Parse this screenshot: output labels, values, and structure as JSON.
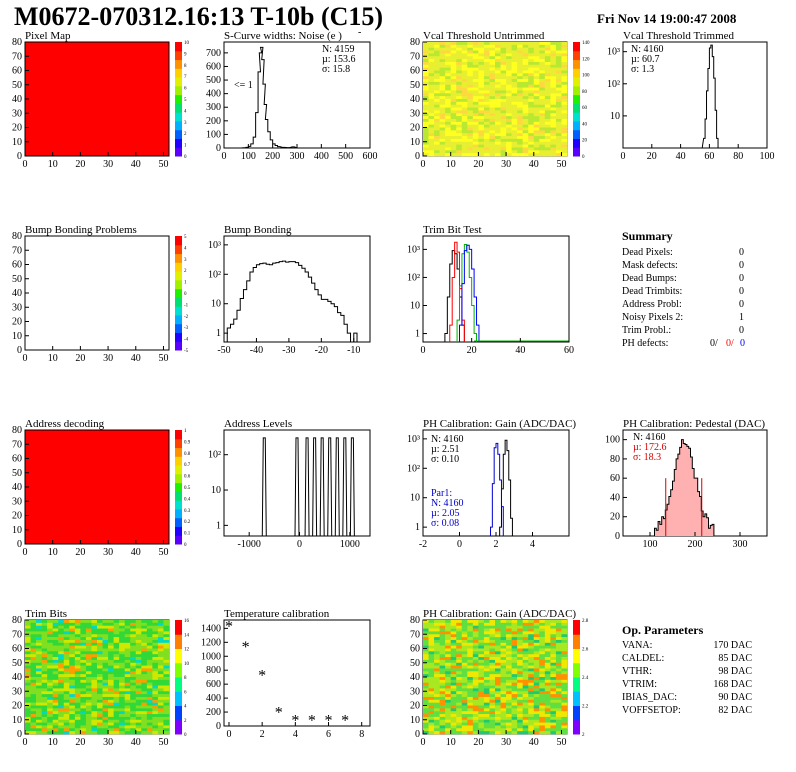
{
  "header": {
    "title": "M0672-070312.16:13 T-10b (C15)",
    "date": "Fri Nov 14 19:00:47 2008"
  },
  "colors": {
    "map_red": "#ff0000",
    "pedestal_red": "#d40000",
    "par_blue": "#0000cc",
    "trim_green": "#00b400"
  },
  "chart_data": [
    {
      "id": "pixel_map",
      "type": "heatmap",
      "title": "Pixel Map",
      "x_ticks": [
        "0",
        "10",
        "20",
        "30",
        "40",
        "50"
      ],
      "y_ticks": [
        "0",
        "10",
        "20",
        "30",
        "40",
        "50",
        "60",
        "70",
        "80"
      ],
      "xlim": [
        0,
        52
      ],
      "ylim": [
        0,
        80
      ],
      "uniform_value": 10,
      "palette_ticks": [
        "0",
        "1",
        "2",
        "3",
        "4",
        "5",
        "6",
        "7",
        "8",
        "9",
        "10"
      ]
    },
    {
      "id": "scurve",
      "type": "histogram",
      "title": "S-Curve widths: Noise (e )",
      "title_sup": "-",
      "x_ticks": [
        "0",
        "100",
        "200",
        "300",
        "400",
        "500",
        "600"
      ],
      "y_ticks": [
        "0",
        "100",
        "200",
        "300",
        "400",
        "500",
        "600",
        "700"
      ],
      "xlim": [
        0,
        600
      ],
      "ylim": [
        0,
        780
      ],
      "stats": [
        "N: 4159",
        "µ: 153.6",
        "σ: 15.8"
      ],
      "annotation": "<= 1",
      "bins": [
        [
          60,
          0
        ],
        [
          80,
          2
        ],
        [
          90,
          5
        ],
        [
          100,
          12
        ],
        [
          110,
          30
        ],
        [
          120,
          80
        ],
        [
          130,
          260
        ],
        [
          140,
          560
        ],
        [
          145,
          700
        ],
        [
          150,
          740
        ],
        [
          155,
          650
        ],
        [
          160,
          470
        ],
        [
          165,
          320
        ],
        [
          170,
          210
        ],
        [
          180,
          120
        ],
        [
          190,
          60
        ],
        [
          200,
          30
        ],
        [
          210,
          18
        ],
        [
          220,
          10
        ],
        [
          240,
          5
        ],
        [
          260,
          3
        ],
        [
          280,
          8
        ],
        [
          300,
          0
        ]
      ]
    },
    {
      "id": "vcal_untrimmed",
      "type": "heatmap",
      "title": "Vcal Threshold Untrimmed",
      "x_ticks": [
        "0",
        "10",
        "20",
        "30",
        "40",
        "50"
      ],
      "y_ticks": [
        "0",
        "10",
        "20",
        "30",
        "40",
        "50",
        "60",
        "70",
        "80"
      ],
      "xlim": [
        0,
        52
      ],
      "ylim": [
        0,
        80
      ],
      "palette_ticks": [
        "0",
        "20",
        "40",
        "60",
        "80",
        "100",
        "120",
        "140"
      ]
    },
    {
      "id": "vcal_trimmed",
      "type": "histogram",
      "title": "Vcal Threshold Trimmed",
      "x_ticks": [
        "0",
        "20",
        "40",
        "60",
        "80",
        "100"
      ],
      "y_ticks": [
        "10",
        "10²",
        "10³"
      ],
      "xlim": [
        0,
        100
      ],
      "log": true,
      "stats": [
        "N: 4160",
        "µ: 60.7",
        "σ:  1.3"
      ],
      "bins": [
        [
          54,
          0.5
        ],
        [
          56,
          2
        ],
        [
          57,
          8
        ],
        [
          58,
          60
        ],
        [
          59,
          300
        ],
        [
          60,
          1300
        ],
        [
          61,
          1600
        ],
        [
          62,
          700
        ],
        [
          63,
          150
        ],
        [
          64,
          15
        ],
        [
          65,
          2
        ],
        [
          66,
          0.5
        ]
      ]
    },
    {
      "id": "bump_problems",
      "type": "heatmap",
      "title": "Bump Bonding Problems",
      "x_ticks": [
        "0",
        "10",
        "20",
        "30",
        "40",
        "50"
      ],
      "y_ticks": [
        "0",
        "10",
        "20",
        "30",
        "40",
        "50",
        "60",
        "70",
        "80"
      ],
      "xlim": [
        0,
        52
      ],
      "ylim": [
        0,
        80
      ],
      "palette_ticks": [
        "-5",
        "-4",
        "-3",
        "-2",
        "-1",
        "0",
        "1",
        "2",
        "3",
        "4",
        "5"
      ]
    },
    {
      "id": "bump_bonding",
      "type": "histogram",
      "title": "Bump Bonding",
      "x_ticks": [
        "-50",
        "-40",
        "-30",
        "-20",
        "-10"
      ],
      "y_ticks": [
        "1",
        "10",
        "10²",
        "10³"
      ],
      "xlim": [
        -50,
        -5
      ],
      "log": true,
      "bins": [
        [
          -49,
          1.5
        ],
        [
          -48,
          2
        ],
        [
          -47,
          3
        ],
        [
          -46,
          6
        ],
        [
          -45,
          15
        ],
        [
          -44,
          30
        ],
        [
          -43,
          60
        ],
        [
          -42,
          120
        ],
        [
          -41,
          170
        ],
        [
          -40,
          210
        ],
        [
          -39,
          230
        ],
        [
          -38,
          240
        ],
        [
          -37,
          220
        ],
        [
          -36,
          210
        ],
        [
          -35,
          240
        ],
        [
          -34,
          250
        ],
        [
          -33,
          270
        ],
        [
          -32,
          280
        ],
        [
          -31,
          260
        ],
        [
          -30,
          270
        ],
        [
          -29,
          270
        ],
        [
          -28,
          250
        ],
        [
          -27,
          200
        ],
        [
          -26,
          160
        ],
        [
          -25,
          120
        ],
        [
          -24,
          80
        ],
        [
          -23,
          50
        ],
        [
          -22,
          30
        ],
        [
          -21,
          20
        ],
        [
          -20,
          14
        ],
        [
          -19,
          14
        ],
        [
          -18,
          12
        ],
        [
          -17,
          10
        ],
        [
          -16,
          8
        ],
        [
          -15,
          5
        ],
        [
          -14,
          4
        ],
        [
          -13,
          2
        ],
        [
          -12,
          1
        ],
        [
          -11,
          0.5
        ],
        [
          -10,
          1
        ],
        [
          -9,
          0.5
        ]
      ]
    },
    {
      "id": "trim_bits",
      "type": "histogram",
      "title": "Trim Bit Test",
      "x_ticks": [
        "0",
        "20",
        "40",
        "60"
      ],
      "y_ticks": [
        "1",
        "10",
        "10²",
        "10³"
      ],
      "xlim": [
        0,
        60
      ],
      "log": true,
      "series": [
        {
          "color": "#000000",
          "bins": [
            [
              9,
              1
            ],
            [
              10,
              20
            ],
            [
              11,
              300
            ],
            [
              12,
              900
            ],
            [
              13,
              700
            ],
            [
              14,
              200
            ],
            [
              15,
              20
            ],
            [
              16,
              2
            ]
          ]
        },
        {
          "color": "#ff0000",
          "bins": [
            [
              11,
              2
            ],
            [
              12,
              100
            ],
            [
              13,
              1800
            ],
            [
              14,
              800
            ],
            [
              15,
              40
            ],
            [
              16,
              3
            ]
          ]
        },
        {
          "color": "#00b400",
          "bins": [
            [
              14,
              3
            ],
            [
              15,
              50
            ],
            [
              16,
              700
            ],
            [
              17,
              1500
            ],
            [
              18,
              800
            ],
            [
              19,
              100
            ],
            [
              20,
              10
            ],
            [
              21,
              1
            ]
          ]
        },
        {
          "color": "#0000ff",
          "bins": [
            [
              15,
              2
            ],
            [
              16,
              60
            ],
            [
              17,
              900
            ],
            [
              18,
              1400
            ],
            [
              19,
              1000
            ],
            [
              20,
              200
            ],
            [
              21,
              20
            ],
            [
              22,
              2
            ]
          ]
        }
      ]
    },
    {
      "id": "address_decoding",
      "type": "heatmap",
      "title": "Address decoding",
      "x_ticks": [
        "0",
        "10",
        "20",
        "30",
        "40",
        "50"
      ],
      "y_ticks": [
        "0",
        "10",
        "20",
        "30",
        "40",
        "50",
        "60",
        "70",
        "80"
      ],
      "xlim": [
        0,
        52
      ],
      "ylim": [
        0,
        80
      ],
      "uniform_value": 1,
      "palette_ticks": [
        "0",
        "0.1",
        "0.2",
        "0.3",
        "0.4",
        "0.5",
        "0.6",
        "0.7",
        "0.8",
        "0.9",
        "1"
      ]
    },
    {
      "id": "address_levels",
      "type": "histogram",
      "title": "Address Levels",
      "x_ticks": [
        "-1000",
        "0",
        "1000"
      ],
      "y_ticks": [
        "1",
        "10",
        "10²"
      ],
      "xlim": [
        -1500,
        1400
      ],
      "log": true,
      "peaks": [
        -700,
        -50,
        150,
        300,
        450,
        600,
        750,
        900,
        1050
      ]
    },
    {
      "id": "ph_gain_hist",
      "type": "histogram",
      "title": "PH Calibration: Gain (ADC/DAC)",
      "x_ticks": [
        "-2",
        "0",
        "2",
        "4"
      ],
      "y_ticks": [
        "1",
        "10",
        "10²",
        "10³"
      ],
      "xlim": [
        -2,
        6
      ],
      "log": true,
      "stats": [
        "N: 4160",
        "µ: 2.51",
        "σ: 0.10"
      ],
      "par_stats": [
        "Par1:",
        "N: 4160",
        "µ: 2.05",
        "σ: 0.08"
      ]
    },
    {
      "id": "ph_pedestal",
      "type": "histogram",
      "title": "PH Calibration: Pedestal (DAC)",
      "x_ticks": [
        "100",
        "200",
        "300"
      ],
      "y_ticks": [
        "0",
        "20",
        "40",
        "60",
        "80",
        "100"
      ],
      "xlim": [
        40,
        360
      ],
      "ylim": [
        0,
        110
      ],
      "stats": [
        "N: 4160",
        "µ: 172.6",
        "σ: 18.3"
      ]
    },
    {
      "id": "trim_bits_map",
      "type": "heatmap",
      "title": "Trim Bits",
      "x_ticks": [
        "0",
        "10",
        "20",
        "30",
        "40",
        "50"
      ],
      "y_ticks": [
        "0",
        "10",
        "20",
        "30",
        "40",
        "50",
        "60",
        "70",
        "80"
      ],
      "xlim": [
        0,
        52
      ],
      "ylim": [
        0,
        80
      ],
      "palette_ticks": [
        "0",
        "2",
        "4",
        "6",
        "8",
        "10",
        "12",
        "14",
        "16"
      ]
    },
    {
      "id": "temperature",
      "type": "scatter",
      "title": "Temperature calibration",
      "x_ticks": [
        "0",
        "2",
        "4",
        "6",
        "8"
      ],
      "y_ticks": [
        "0",
        "200",
        "400",
        "600",
        "800",
        "1000",
        "1200",
        "1400"
      ],
      "xlim": [
        -0.3,
        8.5
      ],
      "ylim": [
        0,
        1520
      ],
      "points": [
        [
          0,
          1440
        ],
        [
          1,
          1150
        ],
        [
          2,
          740
        ],
        [
          3,
          210
        ],
        [
          4,
          90
        ],
        [
          5,
          90
        ],
        [
          6,
          90
        ],
        [
          7,
          90
        ]
      ]
    },
    {
      "id": "ph_gain_map",
      "type": "heatmap",
      "title": "PH Calibration: Gain (ADC/DAC)",
      "x_ticks": [
        "0",
        "10",
        "20",
        "30",
        "40",
        "50"
      ],
      "y_ticks": [
        "0",
        "10",
        "20",
        "30",
        "40",
        "50",
        "60",
        "70",
        "80"
      ],
      "xlim": [
        0,
        52
      ],
      "ylim": [
        0,
        80
      ],
      "palette_ticks": [
        "2",
        "2.2",
        "2.4",
        "2.6",
        "2.8"
      ]
    }
  ],
  "summary": {
    "title": "Summary",
    "rows": [
      {
        "label": "Dead Pixels:",
        "value": "0"
      },
      {
        "label": "Mask defects:",
        "value": "0"
      },
      {
        "label": "Dead Bumps:",
        "value": "0"
      },
      {
        "label": "Dead Trimbits:",
        "value": "0"
      },
      {
        "label": "Address Probl:",
        "value": "0"
      },
      {
        "label": "Noisy Pixels 2:",
        "value": "1"
      },
      {
        "label": "Trim Probl.:",
        "value": "0"
      }
    ],
    "ph_label": "PH defects:",
    "ph_values": [
      "0/",
      "0/",
      "0"
    ]
  },
  "op_params": {
    "title": "Op. Parameters",
    "rows": [
      {
        "label": "VANA:",
        "value": "170 DAC"
      },
      {
        "label": "CALDEL:",
        "value": "85 DAC"
      },
      {
        "label": "VTHR:",
        "value": "98 DAC"
      },
      {
        "label": "VTRIM:",
        "value": "168 DAC"
      },
      {
        "label": "IBIAS_DAC:",
        "value": "90 DAC"
      },
      {
        "label": "VOFFSETOP:",
        "value": "82 DAC"
      }
    ]
  }
}
